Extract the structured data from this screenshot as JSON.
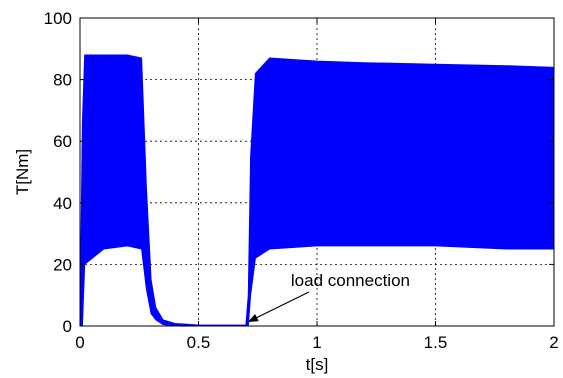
{
  "chart_data": {
    "type": "area",
    "title": "",
    "xlabel": "t[s]",
    "ylabel": "T[Nm]",
    "xlim": [
      0,
      2
    ],
    "ylim": [
      0,
      100
    ],
    "xticks": [
      0,
      0.5,
      1,
      1.5,
      2
    ],
    "xtick_labels": [
      "0",
      "0.5",
      "1",
      "1.5",
      "2"
    ],
    "yticks": [
      0,
      20,
      40,
      60,
      80,
      100
    ],
    "ytick_labels": [
      "0",
      "20",
      "40",
      "60",
      "80",
      "100"
    ],
    "grid": true,
    "grid_style": "dotted",
    "series_color": "#0000ff",
    "series": [
      {
        "x": [
          0.0,
          0.01,
          0.02,
          0.1,
          0.2,
          0.26,
          0.28,
          0.3,
          0.32,
          0.35,
          0.4,
          0.5,
          0.6,
          0.7,
          0.71,
          0.72,
          0.74,
          0.8,
          1.0,
          1.2,
          1.5,
          1.8,
          2.0
        ],
        "upper": [
          0,
          66,
          88,
          88,
          88,
          87,
          45,
          15,
          6,
          2,
          0.8,
          0.3,
          0.3,
          0.3,
          10,
          55,
          82,
          87,
          86,
          85.5,
          85,
          84.5,
          84
        ],
        "lower": [
          0,
          0,
          20,
          25,
          26,
          25,
          12,
          4,
          2,
          0.5,
          0,
          0,
          0,
          0,
          0,
          10,
          22,
          25,
          26,
          26,
          26,
          25,
          25
        ]
      }
    ],
    "annotations": [
      {
        "text": "load connection",
        "x": 0.7,
        "y": 0
      }
    ]
  }
}
